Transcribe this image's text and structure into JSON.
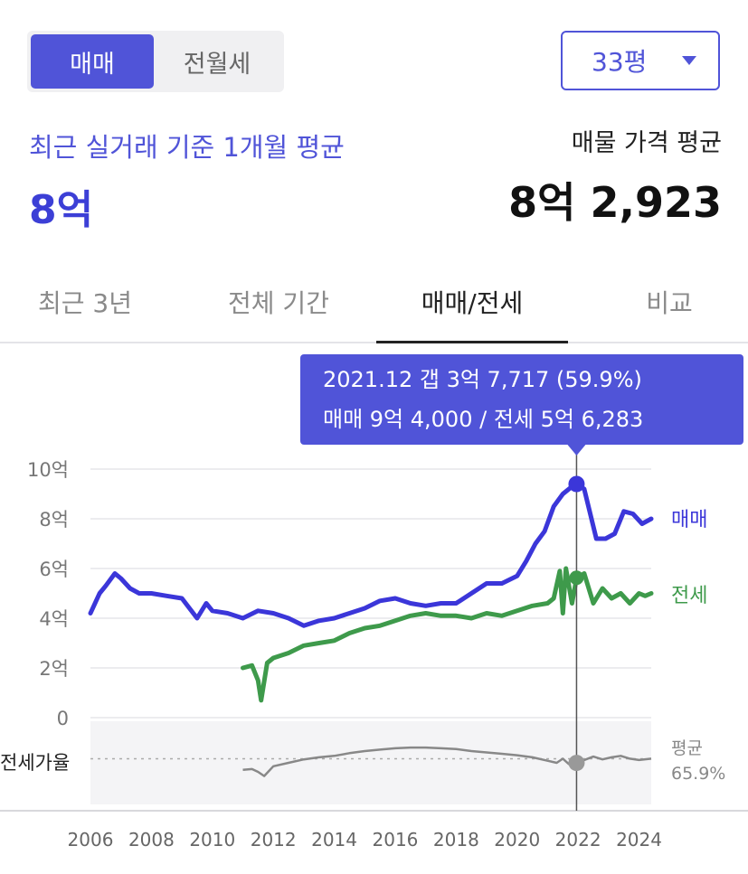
{
  "tradeToggle": {
    "buy": "매매",
    "rent": "전월세"
  },
  "sizeSelect": {
    "value": "33평"
  },
  "summary": {
    "recentLabel": "최근 실거래 기준 1개월 평균",
    "recentValue": "8억",
    "listingLabel": "매물 가격 평균",
    "listingValue": "8억 2,923"
  },
  "tabs": [
    "최근 3년",
    "전체 기간",
    "매매/전세",
    "비교"
  ],
  "colors": {
    "accent": "#5054d8",
    "sale": "#3b36d9",
    "jeonse": "#3e9a4b",
    "ratio": "#888888"
  },
  "chart_data": {
    "type": "line",
    "ylim": [
      0,
      10
    ],
    "yticks": [
      "0",
      "2억",
      "4억",
      "6억",
      "8억",
      "10억"
    ],
    "xticks": [
      "2006",
      "2008",
      "2010",
      "2012",
      "2014",
      "2016",
      "2018",
      "2020",
      "2022",
      "2024"
    ],
    "grid": true,
    "series": [
      {
        "name": "매매",
        "x": [
          2006.0,
          2006.3,
          2006.5,
          2006.8,
          2007.0,
          2007.3,
          2007.6,
          2008.0,
          2008.5,
          2009.0,
          2009.5,
          2009.8,
          2010.0,
          2010.5,
          2011.0,
          2011.5,
          2012.0,
          2012.5,
          2013.0,
          2013.5,
          2014.0,
          2014.5,
          2015.0,
          2015.5,
          2016.0,
          2016.5,
          2017.0,
          2017.5,
          2018.0,
          2018.5,
          2019.0,
          2019.5,
          2020.0,
          2020.3,
          2020.6,
          2020.9,
          2021.2,
          2021.5,
          2021.8,
          2021.95,
          2022.2,
          2022.4,
          2022.6,
          2022.9,
          2023.2,
          2023.5,
          2023.8,
          2024.1,
          2024.4
        ],
        "values": [
          4.2,
          5.0,
          5.3,
          5.8,
          5.6,
          5.2,
          5.0,
          5.0,
          4.9,
          4.8,
          4.0,
          4.6,
          4.3,
          4.2,
          4.0,
          4.3,
          4.2,
          4.0,
          3.7,
          3.9,
          4.0,
          4.2,
          4.4,
          4.7,
          4.8,
          4.6,
          4.5,
          4.6,
          4.6,
          5.0,
          5.4,
          5.4,
          5.7,
          6.3,
          7.0,
          7.5,
          8.5,
          9.0,
          9.3,
          9.4,
          9.2,
          8.2,
          7.2,
          7.2,
          7.4,
          8.3,
          8.2,
          7.8,
          8.0
        ]
      },
      {
        "name": "전세",
        "x": [
          2011.0,
          2011.3,
          2011.5,
          2011.6,
          2011.8,
          2012.0,
          2012.5,
          2013.0,
          2013.5,
          2014.0,
          2014.5,
          2015.0,
          2015.5,
          2016.0,
          2016.5,
          2017.0,
          2017.5,
          2018.0,
          2018.5,
          2019.0,
          2019.5,
          2020.0,
          2020.5,
          2021.0,
          2021.2,
          2021.4,
          2021.5,
          2021.6,
          2021.8,
          2021.95,
          2022.2,
          2022.5,
          2022.8,
          2023.1,
          2023.4,
          2023.7,
          2024.0,
          2024.2,
          2024.4
        ],
        "values": [
          2.0,
          2.1,
          1.5,
          0.7,
          2.2,
          2.4,
          2.6,
          2.9,
          3.0,
          3.1,
          3.4,
          3.6,
          3.7,
          3.9,
          4.1,
          4.2,
          4.1,
          4.1,
          4.0,
          4.2,
          4.1,
          4.3,
          4.5,
          4.6,
          4.8,
          5.9,
          4.2,
          6.0,
          4.6,
          5.6,
          5.8,
          4.6,
          5.2,
          4.8,
          5.0,
          4.6,
          5.0,
          4.9,
          5.0
        ]
      },
      {
        "name": "전세가율",
        "x": [
          2011.0,
          2011.3,
          2011.5,
          2011.7,
          2012.0,
          2012.5,
          2013.0,
          2013.5,
          2014.0,
          2014.5,
          2015.0,
          2015.5,
          2016.0,
          2016.5,
          2017.0,
          2017.5,
          2018.0,
          2018.5,
          2019.0,
          2019.5,
          2020.0,
          2020.5,
          2021.0,
          2021.3,
          2021.5,
          2021.7,
          2021.95,
          2022.2,
          2022.5,
          2022.8,
          2023.1,
          2023.4,
          2023.7,
          2024.0,
          2024.4
        ],
        "values": [
          50,
          51,
          47,
          41,
          55,
          60,
          65,
          68,
          70,
          74,
          77,
          79,
          81,
          82,
          82,
          81,
          80,
          77,
          75,
          73,
          71,
          68,
          63,
          60,
          66,
          58,
          59.9,
          64,
          69,
          65,
          68,
          70,
          66,
          64,
          66
        ]
      }
    ],
    "seriesLabels": {
      "sale": "매매",
      "jeonse": "전세"
    },
    "ratioPanel": {
      "label": "전세가율",
      "avgLabel": "평균",
      "avgValue": "65.9%",
      "average": 65.9,
      "range": [
        0,
        120
      ]
    },
    "tooltip": {
      "date": "2021.12",
      "x": 2021.95,
      "line1": "2021.12  갭 3억 7,717 (59.9%)",
      "line2": "매매 9억 4,000 / 전세 5억 6,283",
      "sale": 9.4,
      "jeonse": 5.6283,
      "ratio": 59.9
    }
  }
}
